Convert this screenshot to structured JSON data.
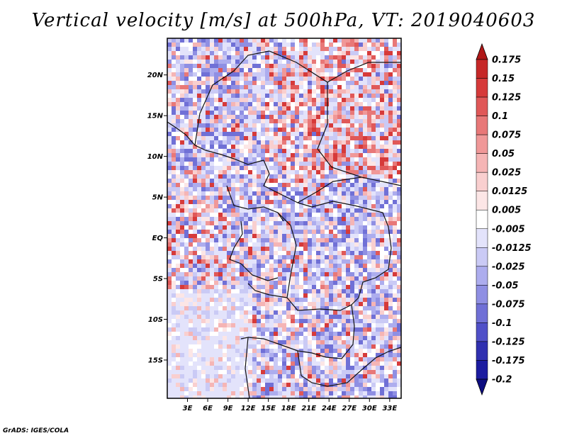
{
  "title": "Vertical velocity [m/s] at 500hPa, VT: 2019040603",
  "credit": "GrADS: IGES/COLA",
  "map": {
    "lat_labels": [
      "20N",
      "15N",
      "10N",
      "5N",
      "EQ",
      "5S",
      "10S",
      "15S"
    ],
    "lon_labels": [
      "3E",
      "6E",
      "9E",
      "12E",
      "15E",
      "18E",
      "21E",
      "24E",
      "27E",
      "30E",
      "33E"
    ],
    "lat_range": [
      -19.7,
      24.5
    ],
    "lon_range": [
      0.0,
      34.7
    ]
  },
  "colorbar": {
    "levels": [
      "0.175",
      "0.15",
      "0.125",
      "0.1",
      "0.075",
      "0.05",
      "0.025",
      "0.0125",
      "0.005",
      "-0.005",
      "-0.0125",
      "-0.025",
      "-0.05",
      "-0.075",
      "-0.1",
      "-0.125",
      "-0.175",
      "-0.2"
    ],
    "colors": [
      "#b01818",
      "#c62828",
      "#d63a3a",
      "#e05858",
      "#e87878",
      "#f09898",
      "#f5b5b5",
      "#f9cfcf",
      "#fce6e6",
      "#ffffff",
      "#e3e3fb",
      "#cacaf5",
      "#adadee",
      "#8f8fe3",
      "#7070d6",
      "#5050c8",
      "#3030b0",
      "#1c1ca0",
      "#0d0d80"
    ]
  }
}
